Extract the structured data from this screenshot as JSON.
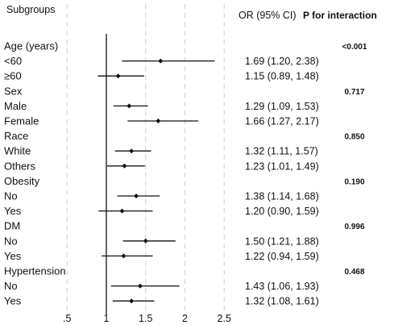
{
  "headers": {
    "subgroups": "Subgroups",
    "or_ci": "OR (95% CI)",
    "p_interaction": "P for interaction"
  },
  "chart_data": {
    "type": "forest",
    "xlabel": "",
    "xlim": [
      0.33,
      2.9
    ],
    "x_ticks": [
      ".5",
      "1",
      "1.5",
      "2",
      "2.5"
    ],
    "x_tick_values": [
      0.5,
      1,
      1.5,
      2,
      2.5
    ],
    "reference_line": 1,
    "grid": "dashed vertical at ticks",
    "rows": [
      {
        "label": "Age (years)",
        "heading": true,
        "p": "<0.001"
      },
      {
        "label": "<60",
        "or": 1.69,
        "lo": 1.2,
        "hi": 2.38,
        "ci_text": "1.69 (1.20, 2.38)"
      },
      {
        "label": "≥60",
        "or": 1.15,
        "lo": 0.89,
        "hi": 1.48,
        "ci_text": "1.15 (0.89, 1.48)"
      },
      {
        "label": "Sex",
        "heading": true,
        "p": "0.717"
      },
      {
        "label": "Male",
        "or": 1.29,
        "lo": 1.09,
        "hi": 1.53,
        "ci_text": "1.29 (1.09, 1.53)"
      },
      {
        "label": "Female",
        "or": 1.66,
        "lo": 1.27,
        "hi": 2.17,
        "ci_text": "1.66 (1.27, 2.17)"
      },
      {
        "label": "Race",
        "heading": true,
        "p": "0.850"
      },
      {
        "label": "White",
        "or": 1.32,
        "lo": 1.11,
        "hi": 1.57,
        "ci_text": "1.32 (1.11, 1.57)"
      },
      {
        "label": "Others",
        "or": 1.23,
        "lo": 1.01,
        "hi": 1.49,
        "ci_text": "1.23 (1.01, 1.49)"
      },
      {
        "label": "Obesity",
        "heading": true,
        "p": "0.190"
      },
      {
        "label": "No",
        "or": 1.38,
        "lo": 1.14,
        "hi": 1.68,
        "ci_text": "1.38 (1.14, 1.68)"
      },
      {
        "label": "Yes",
        "or": 1.2,
        "lo": 0.9,
        "hi": 1.59,
        "ci_text": "1.20 (0.90, 1.59)"
      },
      {
        "label": "DM",
        "heading": true,
        "p": "0.996"
      },
      {
        "label": "No",
        "or": 1.5,
        "lo": 1.21,
        "hi": 1.88,
        "ci_text": "1.50 (1.21, 1.88)"
      },
      {
        "label": "Yes",
        "or": 1.22,
        "lo": 0.94,
        "hi": 1.59,
        "ci_text": "1.22 (0.94, 1.59)"
      },
      {
        "label": "Hypertension",
        "heading": true,
        "p": "0.468"
      },
      {
        "label": "No",
        "or": 1.43,
        "lo": 1.06,
        "hi": 1.93,
        "ci_text": "1.43 (1.06, 1.93)"
      },
      {
        "label": "Yes",
        "or": 1.32,
        "lo": 1.08,
        "hi": 1.61,
        "ci_text": "1.32 (1.08, 1.61)"
      }
    ]
  },
  "colors": {
    "ink": "#111111",
    "grid": "#cfcfcf"
  }
}
